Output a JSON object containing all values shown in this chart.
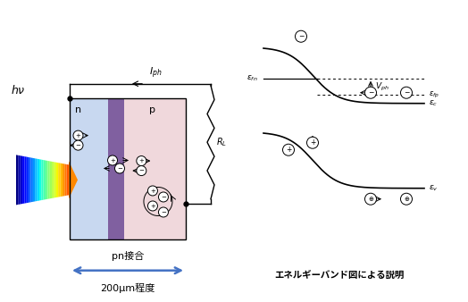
{
  "bg_color": "#ffffff",
  "n_region_color": "#c8d8f0",
  "p_region_color": "#f0d8dc",
  "junction_color": "#8060a0",
  "label_n": "n",
  "label_p": "p",
  "label_pn": "pn接合",
  "label_size": "200μm程度",
  "label_hv": "$h\\nu$",
  "label_Iph": "$I_{ph}$",
  "label_RL": "$R_L$",
  "label_ec": "$\\varepsilon_c$",
  "label_ev": "$\\varepsilon_v$",
  "label_efn": "$\\varepsilon_{fn}$",
  "label_efp": "$\\varepsilon_{fp}$",
  "label_Vph": "$V_{ph}$",
  "label_band": "エネルギーバンド図による説明",
  "arrow_color": "#4472c4"
}
